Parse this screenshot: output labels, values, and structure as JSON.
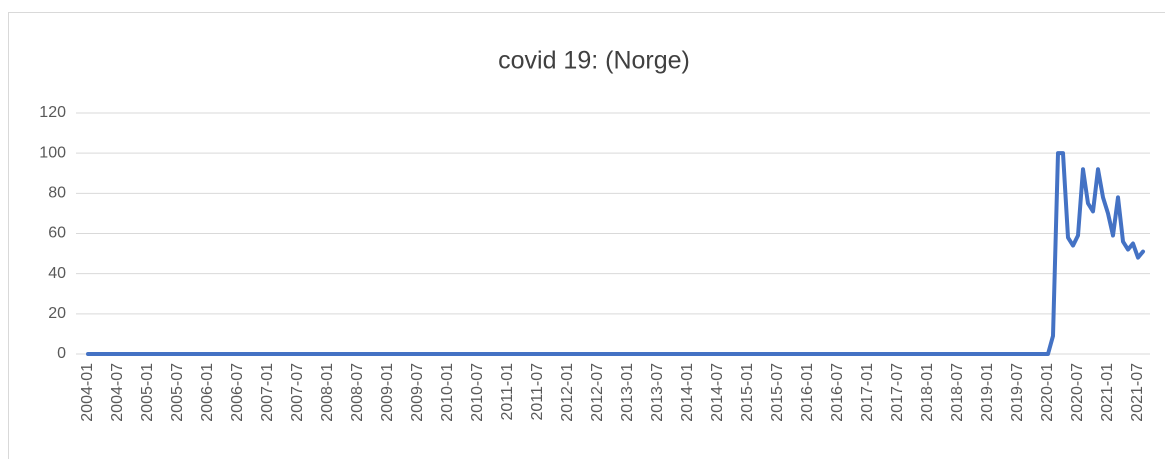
{
  "chart_data": {
    "type": "line",
    "title": "covid 19: (Norge)",
    "categories": [
      "2004-01",
      null,
      null,
      null,
      null,
      null,
      "2004-07",
      null,
      null,
      null,
      null,
      null,
      "2005-01",
      null,
      null,
      null,
      null,
      null,
      "2005-07",
      null,
      null,
      null,
      null,
      null,
      "2006-01",
      null,
      null,
      null,
      null,
      null,
      "2006-07",
      null,
      null,
      null,
      null,
      null,
      "2007-01",
      null,
      null,
      null,
      null,
      null,
      "2007-07",
      null,
      null,
      null,
      null,
      null,
      "2008-01",
      null,
      null,
      null,
      null,
      null,
      "2008-07",
      null,
      null,
      null,
      null,
      null,
      "2009-01",
      null,
      null,
      null,
      null,
      null,
      "2009-07",
      null,
      null,
      null,
      null,
      null,
      "2010-01",
      null,
      null,
      null,
      null,
      null,
      "2010-07",
      null,
      null,
      null,
      null,
      null,
      "2011-01",
      null,
      null,
      null,
      null,
      null,
      "2011-07",
      null,
      null,
      null,
      null,
      null,
      "2012-01",
      null,
      null,
      null,
      null,
      null,
      "2012-07",
      null,
      null,
      null,
      null,
      null,
      "2013-01",
      null,
      null,
      null,
      null,
      null,
      "2013-07",
      null,
      null,
      null,
      null,
      null,
      "2014-01",
      null,
      null,
      null,
      null,
      null,
      "2014-07",
      null,
      null,
      null,
      null,
      null,
      "2015-01",
      null,
      null,
      null,
      null,
      null,
      "2015-07",
      null,
      null,
      null,
      null,
      null,
      "2016-01",
      null,
      null,
      null,
      null,
      null,
      "2016-07",
      null,
      null,
      null,
      null,
      null,
      "2017-01",
      null,
      null,
      null,
      null,
      null,
      "2017-07",
      null,
      null,
      null,
      null,
      null,
      "2018-01",
      null,
      null,
      null,
      null,
      null,
      "2018-07",
      null,
      null,
      null,
      null,
      null,
      "2019-01",
      null,
      null,
      null,
      null,
      null,
      "2019-07",
      null,
      null,
      null,
      null,
      null,
      "2020-01",
      null,
      null,
      null,
      null,
      null,
      "2020-07",
      null,
      null,
      null,
      null,
      null,
      "2021-01",
      null,
      null,
      null,
      null,
      null,
      "2021-07",
      null
    ],
    "series": [
      {
        "name": "covid 19: (Norge)",
        "color": "#4472c4",
        "values": [
          0,
          0,
          0,
          0,
          0,
          0,
          0,
          0,
          0,
          0,
          0,
          0,
          0,
          0,
          0,
          0,
          0,
          0,
          0,
          0,
          0,
          0,
          0,
          0,
          0,
          0,
          0,
          0,
          0,
          0,
          0,
          0,
          0,
          0,
          0,
          0,
          0,
          0,
          0,
          0,
          0,
          0,
          0,
          0,
          0,
          0,
          0,
          0,
          0,
          0,
          0,
          0,
          0,
          0,
          0,
          0,
          0,
          0,
          0,
          0,
          0,
          0,
          0,
          0,
          0,
          0,
          0,
          0,
          0,
          0,
          0,
          0,
          0,
          0,
          0,
          0,
          0,
          0,
          0,
          0,
          0,
          0,
          0,
          0,
          0,
          0,
          0,
          0,
          0,
          0,
          0,
          0,
          0,
          0,
          0,
          0,
          0,
          0,
          0,
          0,
          0,
          0,
          0,
          0,
          0,
          0,
          0,
          0,
          0,
          0,
          0,
          0,
          0,
          0,
          0,
          0,
          0,
          0,
          0,
          0,
          0,
          0,
          0,
          0,
          0,
          0,
          0,
          0,
          0,
          0,
          0,
          0,
          0,
          0,
          0,
          0,
          0,
          0,
          0,
          0,
          0,
          0,
          0,
          0,
          0,
          0,
          0,
          0,
          0,
          0,
          0,
          0,
          0,
          0,
          0,
          0,
          0,
          0,
          0,
          0,
          0,
          0,
          0,
          0,
          0,
          0,
          0,
          0,
          0,
          0,
          0,
          0,
          0,
          0,
          0,
          0,
          0,
          0,
          0,
          0,
          0,
          0,
          0,
          0,
          0,
          0,
          0,
          0,
          0,
          0,
          0,
          0,
          0,
          9,
          100,
          100,
          58,
          54,
          59,
          92,
          75,
          71,
          92,
          78,
          70,
          59,
          78,
          56,
          52,
          55,
          48,
          51
        ]
      }
    ],
    "ylim": [
      0,
      120
    ],
    "yticks": [
      0,
      20,
      40,
      60,
      80,
      100,
      120
    ],
    "grid": true
  }
}
